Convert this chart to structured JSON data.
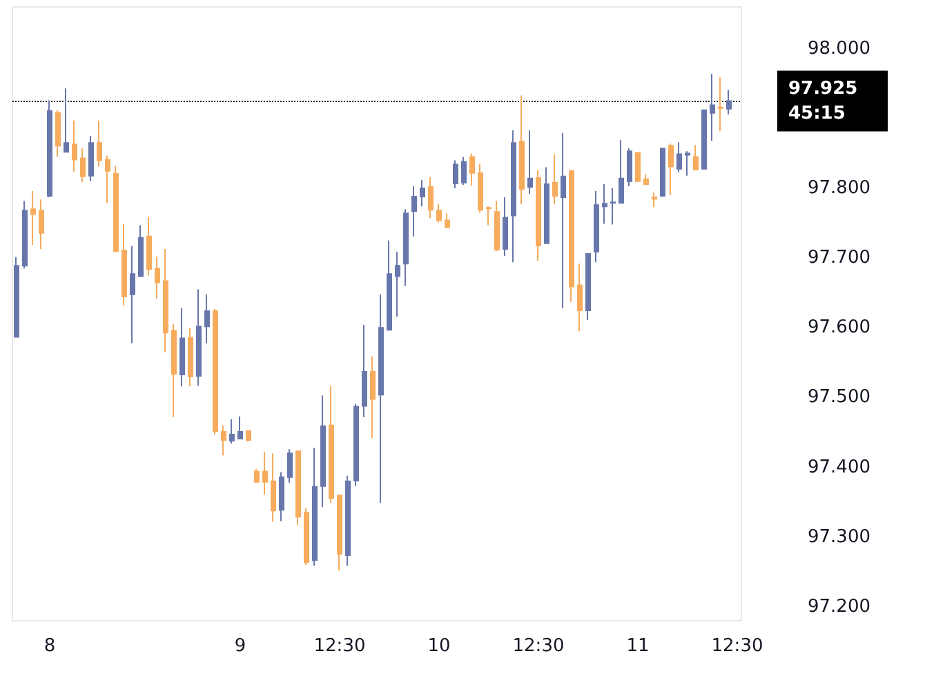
{
  "chart_data": {
    "type": "candlestick",
    "categories": [
      null,
      null,
      null,
      null,
      "8",
      null,
      null,
      null,
      null,
      null,
      null,
      null,
      null,
      null,
      null,
      null,
      null,
      null,
      null,
      null,
      null,
      null,
      null,
      null,
      null,
      null,
      null,
      "9",
      null,
      null,
      null,
      null,
      null,
      null,
      null,
      null,
      null,
      null,
      null,
      "12:30",
      null,
      null,
      null,
      null,
      null,
      null,
      null,
      null,
      null,
      null,
      null,
      "10",
      null,
      null,
      null,
      null,
      null,
      null,
      null,
      null,
      null,
      null,
      null,
      "12:30",
      null,
      null,
      null,
      null,
      null,
      null,
      null,
      null,
      null,
      null,
      null,
      "11",
      null,
      null,
      null,
      null,
      null,
      null,
      null,
      null,
      null,
      null,
      null,
      "12:30"
    ],
    "ohlc": [
      [
        97.587,
        97.701,
        97.587,
        97.689
      ],
      [
        97.689,
        97.782,
        97.685,
        97.768
      ],
      [
        97.77,
        97.796,
        97.719,
        97.763
      ],
      [
        97.768,
        97.784,
        97.713,
        97.736
      ],
      [
        97.789,
        97.926,
        97.787,
        97.911
      ],
      [
        97.908,
        97.912,
        97.845,
        97.861
      ],
      [
        97.852,
        97.943,
        97.852,
        97.865
      ],
      [
        97.863,
        97.897,
        97.824,
        97.841
      ],
      [
        97.843,
        97.857,
        97.809,
        97.817
      ],
      [
        97.818,
        97.875,
        97.81,
        97.865
      ],
      [
        97.865,
        97.897,
        97.831,
        97.84
      ],
      [
        97.841,
        97.847,
        97.779,
        97.825
      ],
      [
        97.821,
        97.832,
        97.708,
        97.71
      ],
      [
        97.711,
        97.749,
        97.632,
        97.645
      ],
      [
        97.648,
        97.717,
        97.578,
        97.677
      ],
      [
        97.674,
        97.747,
        97.674,
        97.729
      ],
      [
        97.731,
        97.759,
        97.675,
        97.684
      ],
      [
        97.685,
        97.702,
        97.642,
        97.665
      ],
      [
        97.667,
        97.713,
        97.565,
        97.593
      ],
      [
        97.596,
        97.606,
        97.472,
        97.534
      ],
      [
        97.533,
        97.628,
        97.516,
        97.585
      ],
      [
        97.586,
        97.6,
        97.516,
        97.53
      ],
      [
        97.531,
        97.655,
        97.517,
        97.602
      ],
      [
        97.602,
        97.648,
        97.578,
        97.624
      ],
      [
        97.624,
        97.627,
        97.447,
        97.452
      ],
      [
        97.451,
        97.46,
        97.417,
        97.439
      ],
      [
        97.438,
        97.469,
        97.434,
        97.447
      ],
      [
        97.441,
        97.473,
        97.44,
        97.451
      ],
      [
        97.452,
        97.452,
        97.437,
        97.439
      ],
      [
        97.394,
        97.398,
        97.379,
        97.379
      ],
      [
        97.394,
        97.422,
        97.361,
        97.379
      ],
      [
        97.38,
        97.42,
        97.322,
        97.338
      ],
      [
        97.339,
        97.393,
        97.323,
        97.386
      ],
      [
        97.386,
        97.426,
        97.378,
        97.42
      ],
      [
        97.423,
        97.423,
        97.317,
        97.329
      ],
      [
        97.335,
        97.342,
        97.26,
        97.264
      ],
      [
        97.267,
        97.428,
        97.259,
        97.372
      ],
      [
        97.373,
        97.503,
        97.343,
        97.459
      ],
      [
        97.46,
        97.517,
        97.349,
        97.356
      ],
      [
        97.36,
        97.36,
        97.252,
        97.276
      ],
      [
        97.274,
        97.388,
        97.259,
        97.38
      ],
      [
        97.381,
        97.491,
        97.373,
        97.487
      ],
      [
        97.488,
        97.604,
        97.472,
        97.537
      ],
      [
        97.537,
        97.559,
        97.442,
        97.498
      ],
      [
        97.504,
        97.648,
        97.349,
        97.6
      ],
      [
        97.597,
        97.725,
        97.597,
        97.677
      ],
      [
        97.674,
        97.709,
        97.616,
        97.689
      ],
      [
        97.692,
        97.77,
        97.66,
        97.764
      ],
      [
        97.767,
        97.803,
        97.731,
        97.788
      ],
      [
        97.788,
        97.812,
        97.774,
        97.8
      ],
      [
        97.802,
        97.816,
        97.757,
        97.769
      ],
      [
        97.768,
        97.778,
        97.751,
        97.754
      ],
      [
        97.754,
        97.764,
        97.744,
        97.744
      ],
      [
        97.807,
        97.84,
        97.8,
        97.834
      ],
      [
        97.808,
        97.845,
        97.805,
        97.838
      ],
      [
        97.845,
        97.85,
        97.804,
        97.822
      ],
      [
        97.822,
        97.835,
        97.765,
        97.769
      ],
      [
        97.772,
        97.774,
        97.747,
        97.771
      ],
      [
        97.766,
        97.782,
        97.71,
        97.712
      ],
      [
        97.713,
        97.787,
        97.703,
        97.758
      ],
      [
        97.761,
        97.883,
        97.694,
        97.865
      ],
      [
        97.867,
        97.933,
        97.777,
        97.799
      ],
      [
        97.802,
        97.883,
        97.792,
        97.814
      ],
      [
        97.815,
        97.826,
        97.696,
        97.718
      ],
      [
        97.721,
        97.83,
        97.721,
        97.806
      ],
      [
        97.808,
        97.849,
        97.777,
        97.789
      ],
      [
        97.787,
        97.879,
        97.628,
        97.817
      ],
      [
        97.825,
        97.825,
        97.637,
        97.659
      ],
      [
        97.661,
        97.692,
        97.595,
        97.625
      ],
      [
        97.625,
        97.706,
        97.611,
        97.706
      ],
      [
        97.709,
        97.796,
        97.694,
        97.776
      ],
      [
        97.774,
        97.806,
        97.749,
        97.778
      ],
      [
        97.779,
        97.8,
        97.748,
        97.78
      ],
      [
        97.779,
        97.869,
        97.779,
        97.814
      ],
      [
        97.81,
        97.857,
        97.803,
        97.853
      ],
      [
        97.851,
        97.851,
        97.81,
        97.81
      ],
      [
        97.813,
        97.82,
        97.806,
        97.806
      ],
      [
        97.787,
        97.794,
        97.773,
        97.785
      ],
      [
        97.789,
        97.857,
        97.789,
        97.857
      ],
      [
        97.861,
        97.864,
        97.79,
        97.831
      ],
      [
        97.828,
        97.866,
        97.823,
        97.849
      ],
      [
        97.848,
        97.853,
        97.818,
        97.85
      ],
      [
        97.845,
        97.862,
        97.827,
        97.827
      ],
      [
        97.828,
        97.913,
        97.828,
        97.912
      ],
      [
        97.908,
        97.964,
        97.868,
        97.919
      ],
      [
        97.916,
        97.959,
        97.882,
        97.915
      ],
      [
        97.914,
        97.941,
        97.906,
        97.925
      ],
      null
    ],
    "colors": [
      "#6877ab",
      "#6877ab",
      "#f7ab5d",
      "#f7ab5d",
      "#6877ab",
      "#f7ab5d",
      "#6877ab",
      "#f7ab5d",
      "#f7ab5d",
      "#6877ab",
      "#f7ab5d",
      "#f7ab5d",
      "#f7ab5d",
      "#f7ab5d",
      "#6877ab",
      "#6877ab",
      "#f7ab5d",
      "#f7ab5d",
      "#f7ab5d",
      "#f7ab5d",
      "#6877ab",
      "#f7ab5d",
      "#6877ab",
      "#6877ab",
      "#f7ab5d",
      "#f7ab5d",
      "#6877ab",
      "#6877ab",
      "#f7ab5d",
      "#f7ab5d",
      "#f7ab5d",
      "#f7ab5d",
      "#6877ab",
      "#6877ab",
      "#f7ab5d",
      "#f7ab5d",
      "#6877ab",
      "#6877ab",
      "#f7ab5d",
      "#f7ab5d",
      "#6877ab",
      "#6877ab",
      "#6877ab",
      "#f7ab5d",
      "#6877ab",
      "#6877ab",
      "#6877ab",
      "#6877ab",
      "#6877ab",
      "#6877ab",
      "#f7ab5d",
      "#f7ab5d",
      "#f7ab5d",
      "#6877ab",
      "#6877ab",
      "#f7ab5d",
      "#f7ab5d",
      "#f7ab5d",
      "#f7ab5d",
      "#6877ab",
      "#6877ab",
      "#f7ab5d",
      "#6877ab",
      "#f7ab5d",
      "#6877ab",
      "#f7ab5d",
      "#6877ab",
      "#f7ab5d",
      "#f7ab5d",
      "#6877ab",
      "#6877ab",
      "#6877ab",
      "#6877ab",
      "#6877ab",
      "#6877ab",
      "#f7ab5d",
      "#f7ab5d",
      "#f7ab5d",
      "#6877ab",
      "#f7ab5d",
      "#6877ab",
      "#6877ab",
      "#f7ab5d",
      "#6877ab",
      "#6877ab",
      "#f7ab5d",
      "#6877ab",
      null
    ],
    "ylim": [
      97.18,
      98.06
    ],
    "yticks": [
      {
        "value": 97.2,
        "label": "97.200"
      },
      {
        "value": 97.3,
        "label": "97.300"
      },
      {
        "value": 97.4,
        "label": "97.400"
      },
      {
        "value": 97.5,
        "label": "97.500"
      },
      {
        "value": 97.6,
        "label": "97.600"
      },
      {
        "value": 97.7,
        "label": "97.700"
      },
      {
        "value": 97.8,
        "label": "97.800"
      },
      {
        "value": 98.0,
        "label": "98.000"
      }
    ],
    "ref_lines": [
      {
        "axis": "y",
        "value": 97.925,
        "label": "97.925",
        "color": "#000000",
        "line_style": "dotted"
      }
    ],
    "annotations": [
      "45:15"
    ],
    "grid": false
  }
}
